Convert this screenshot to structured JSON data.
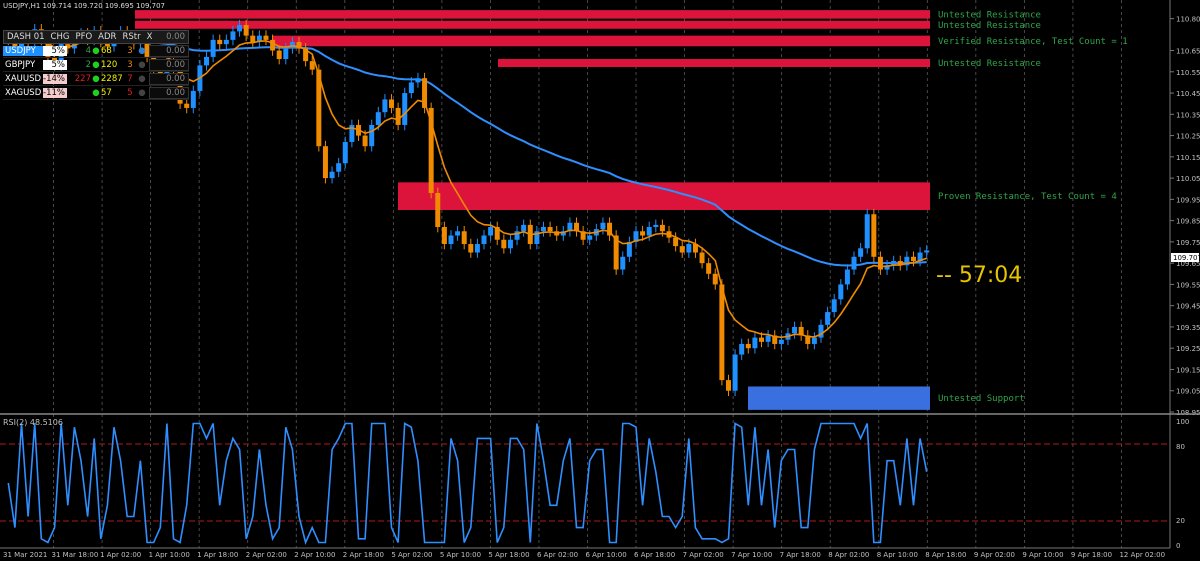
{
  "header": {
    "title": "USDJPY,H1 109.714 109.720 109.695 109.707"
  },
  "dashboard": {
    "headers": [
      "DASH 01",
      "CHG",
      "PFO",
      "ADR",
      "RStr",
      "X"
    ],
    "rows": [
      {
        "sym": "USDJPY",
        "chg": "5%",
        "pfo": "4",
        "adr": "68",
        "rstr": "3",
        "rstr_color": "#f08a00",
        "neg": false
      },
      {
        "sym": "GBPJPY",
        "chg": "5%",
        "pfo": "2",
        "adr": "120",
        "rstr": "3",
        "rstr_color": "#f08a00",
        "neg": false
      },
      {
        "sym": "XAUUSD",
        "chg": "-14%",
        "pfo": "227",
        "adr": "2287",
        "rstr": "7",
        "rstr_color": "#e02020",
        "neg": true
      },
      {
        "sym": "XAGUSD",
        "chg": "-11%",
        "pfo": "",
        "adr": "57",
        "rstr": "5",
        "rstr_color": "#e02020",
        "neg": true
      }
    ],
    "inputs": [
      "0.00",
      "0.00",
      "0.00",
      "0.00",
      "0.00"
    ]
  },
  "price_axis": {
    "ticks": [
      "110.800",
      "110.650",
      "110.550",
      "110.450",
      "110.350",
      "110.250",
      "110.150",
      "110.050",
      "109.950",
      "109.850",
      "109.750",
      "109.650",
      "109.550",
      "109.450",
      "109.350",
      "109.250",
      "109.150",
      "109.050",
      "108.950"
    ],
    "current": "109.707"
  },
  "zones": [
    {
      "label": "Untested Resistance",
      "kind": "resistance"
    },
    {
      "label": "Untested Resistance",
      "kind": "resistance"
    },
    {
      "label": "Verified Resistance, Test Count = 1",
      "kind": "resistance"
    },
    {
      "label": "Untested Resistance",
      "kind": "resistance"
    },
    {
      "label": "Proven Resistance, Test Count = 4",
      "kind": "resistance"
    },
    {
      "label": "Untested Support",
      "kind": "support"
    }
  ],
  "timer": "-- 57:04",
  "rsi": {
    "label": "RSI(2) 48.5106",
    "ticks": [
      "100",
      "80",
      "20",
      "0"
    ]
  },
  "time_axis": [
    "31 Mar 2021",
    "31 Mar 18:00",
    "1 Apr 02:00",
    "1 Apr 10:00",
    "1 Apr 18:00",
    "2 Apr 02:00",
    "2 Apr 10:00",
    "2 Apr 18:00",
    "5 Apr 02:00",
    "5 Apr 10:00",
    "5 Apr 18:00",
    "6 Apr 02:00",
    "6 Apr 10:00",
    "6 Apr 18:00",
    "7 Apr 02:00",
    "7 Apr 10:00",
    "7 Apr 18:00",
    "8 Apr 02:00",
    "8 Apr 10:00",
    "8 Apr 18:00",
    "9 Apr 02:00",
    "9 Apr 10:00",
    "9 Apr 18:00",
    "12 Apr 02:00"
  ],
  "colors": {
    "bull": "#1e90ff",
    "bear": "#f08a00",
    "ema_fast": "#f08a00",
    "ema_slow": "#2f8fff",
    "resistance": "#dc143c",
    "support": "#3a6fe0",
    "rsi": "#2f8fff"
  },
  "chart_data": {
    "type": "candlestick",
    "ylim": [
      108.95,
      110.85
    ],
    "closes": [
      110.7,
      110.66,
      110.72,
      110.69,
      110.75,
      110.7,
      110.62,
      110.58,
      110.68,
      110.66,
      110.71,
      110.73,
      110.7,
      110.74,
      110.69,
      110.67,
      110.72,
      110.74,
      110.71,
      110.68,
      110.7,
      110.62,
      110.55,
      110.51,
      110.6,
      110.55,
      110.4,
      110.38,
      110.46,
      110.58,
      110.62,
      110.7,
      110.68,
      110.7,
      110.74,
      110.77,
      110.72,
      110.69,
      110.72,
      110.7,
      110.65,
      110.61,
      110.66,
      110.69,
      110.66,
      110.6,
      110.56,
      110.2,
      110.05,
      110.08,
      110.12,
      110.22,
      110.3,
      110.25,
      110.2,
      110.3,
      110.36,
      110.42,
      110.38,
      110.3,
      110.45,
      110.5,
      110.52,
      110.38,
      109.98,
      109.82,
      109.74,
      109.78,
      109.8,
      109.74,
      109.7,
      109.74,
      109.78,
      109.82,
      109.76,
      109.72,
      109.76,
      109.8,
      109.83,
      109.74,
      109.8,
      109.82,
      109.8,
      109.78,
      109.8,
      109.84,
      109.8,
      109.76,
      109.78,
      109.81,
      109.84,
      109.78,
      109.62,
      109.68,
      109.75,
      109.8,
      109.78,
      109.82,
      109.83,
      109.8,
      109.77,
      109.73,
      109.7,
      109.74,
      109.7,
      109.65,
      109.6,
      109.55,
      109.1,
      109.05,
      109.22,
      109.27,
      109.25,
      109.3,
      109.28,
      109.31,
      109.27,
      109.29,
      109.32,
      109.35,
      109.31,
      109.27,
      109.3,
      109.36,
      109.42,
      109.48,
      109.55,
      109.62,
      109.68,
      109.72,
      109.88,
      109.68,
      109.62,
      109.64,
      109.66,
      109.64,
      109.68,
      109.66,
      109.7,
      109.71
    ],
    "xlabel": "",
    "ylabel": ""
  }
}
